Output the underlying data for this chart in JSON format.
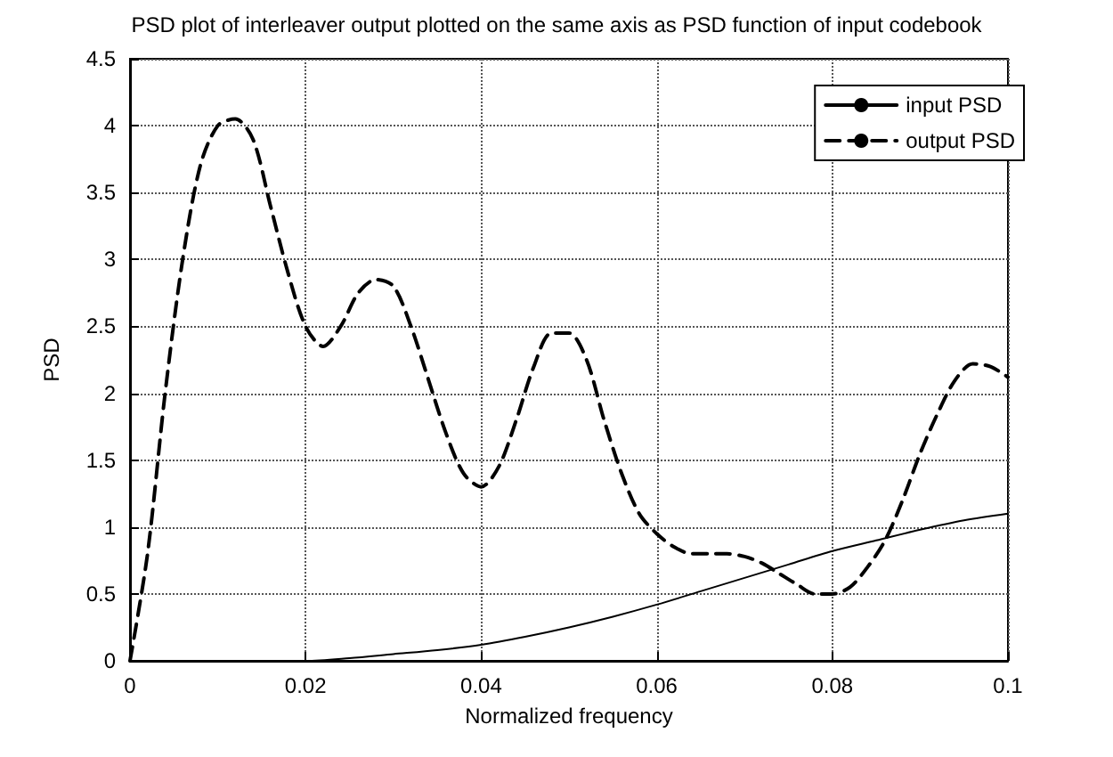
{
  "chart_data": {
    "type": "line",
    "title": "PSD plot of interleaver output plotted on the same axis as PSD function of input codebook",
    "xlabel": "Normalized frequency",
    "ylabel": "PSD",
    "xlim": [
      0,
      0.1
    ],
    "xticks": [
      0,
      0.02,
      0.04,
      0.06,
      0.08,
      0.1
    ],
    "ylim": [
      0,
      4.5
    ],
    "yticks": [
      0,
      0.5,
      1,
      1.5,
      2,
      2.5,
      3,
      3.5,
      4,
      4.5
    ],
    "grid": true,
    "legend": "top right",
    "marker": "none",
    "series": [
      {
        "name": "input PSD",
        "color": "#000000",
        "line_style": "solid",
        "x": [
          0,
          0.01,
          0.015,
          0.02,
          0.025,
          0.03,
          0.035,
          0.04,
          0.045,
          0.05,
          0.055,
          0.06,
          0.065,
          0.07,
          0.075,
          0.08,
          0.085,
          0.09,
          0.095,
          0.1
        ],
        "values": [
          0,
          0,
          0,
          0,
          0.02,
          0.05,
          0.08,
          0.12,
          0.18,
          0.25,
          0.33,
          0.42,
          0.52,
          0.62,
          0.72,
          0.82,
          0.9,
          0.98,
          1.05,
          1.1
        ]
      },
      {
        "name": "output PSD",
        "color": "#000000",
        "line_style": "dashed",
        "x": [
          0,
          0.002,
          0.004,
          0.006,
          0.008,
          0.01,
          0.012,
          0.014,
          0.016,
          0.018,
          0.02,
          0.022,
          0.024,
          0.026,
          0.028,
          0.03,
          0.032,
          0.034,
          0.036,
          0.038,
          0.04,
          0.042,
          0.044,
          0.046,
          0.048,
          0.05,
          0.052,
          0.054,
          0.056,
          0.058,
          0.06,
          0.062,
          0.064,
          0.066,
          0.068,
          0.07,
          0.072,
          0.074,
          0.076,
          0.078,
          0.08,
          0.082,
          0.084,
          0.086,
          0.088,
          0.09,
          0.092,
          0.094,
          0.096,
          0.098,
          0.1
        ],
        "values": [
          0,
          0.8,
          2.0,
          3.0,
          3.7,
          4.0,
          4.05,
          3.9,
          3.4,
          2.9,
          2.5,
          2.35,
          2.5,
          2.75,
          2.85,
          2.8,
          2.5,
          2.1,
          1.7,
          1.4,
          1.3,
          1.45,
          1.8,
          2.2,
          2.45,
          2.45,
          2.25,
          1.8,
          1.4,
          1.1,
          0.95,
          0.85,
          0.8,
          0.8,
          0.8,
          0.78,
          0.73,
          0.65,
          0.57,
          0.5,
          0.5,
          0.55,
          0.7,
          0.9,
          1.2,
          1.55,
          1.85,
          2.1,
          2.22,
          2.2,
          2.12
        ]
      }
    ]
  }
}
